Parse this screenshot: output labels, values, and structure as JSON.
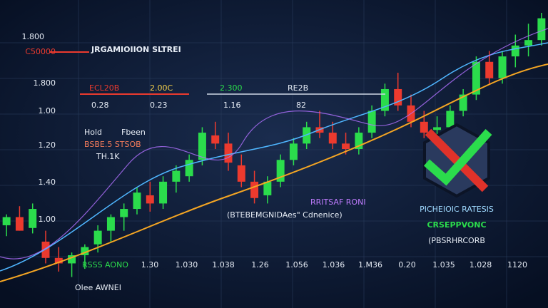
{
  "chart_data": {
    "type": "candlestick",
    "title": "JRGAMIOIION SLTREI",
    "ylim": [
      0,
      100
    ],
    "up_color": "#2bdc4c",
    "down_color": "#ec3a2e",
    "candles": [
      {
        "open": 22,
        "high": 26,
        "low": 18,
        "close": 25
      },
      {
        "open": 25,
        "high": 29,
        "low": 20,
        "close": 20
      },
      {
        "open": 21,
        "high": 30,
        "low": 19,
        "close": 28
      },
      {
        "open": 16,
        "high": 20,
        "low": 8,
        "close": 10
      },
      {
        "open": 10,
        "high": 14,
        "low": 5,
        "close": 8
      },
      {
        "open": 8,
        "high": 12,
        "low": 3,
        "close": 11
      },
      {
        "open": 11,
        "high": 15,
        "low": 6,
        "close": 14
      },
      {
        "open": 15,
        "high": 22,
        "low": 12,
        "close": 20
      },
      {
        "open": 20,
        "high": 26,
        "low": 16,
        "close": 25
      },
      {
        "open": 25,
        "high": 30,
        "low": 20,
        "close": 28
      },
      {
        "open": 28,
        "high": 36,
        "low": 26,
        "close": 34
      },
      {
        "open": 33,
        "high": 38,
        "low": 27,
        "close": 30
      },
      {
        "open": 30,
        "high": 40,
        "low": 28,
        "close": 38
      },
      {
        "open": 38,
        "high": 44,
        "low": 34,
        "close": 42
      },
      {
        "open": 40,
        "high": 48,
        "low": 38,
        "close": 46
      },
      {
        "open": 46,
        "high": 58,
        "low": 44,
        "close": 56
      },
      {
        "open": 55,
        "high": 60,
        "low": 50,
        "close": 52
      },
      {
        "open": 52,
        "high": 56,
        "low": 42,
        "close": 45
      },
      {
        "open": 44,
        "high": 48,
        "low": 36,
        "close": 38
      },
      {
        "open": 38,
        "high": 42,
        "low": 30,
        "close": 32
      },
      {
        "open": 33,
        "high": 40,
        "low": 30,
        "close": 38
      },
      {
        "open": 38,
        "high": 48,
        "low": 36,
        "close": 46
      },
      {
        "open": 46,
        "high": 54,
        "low": 44,
        "close": 52
      },
      {
        "open": 52,
        "high": 60,
        "low": 50,
        "close": 58
      },
      {
        "open": 58,
        "high": 64,
        "low": 54,
        "close": 56
      },
      {
        "open": 56,
        "high": 60,
        "low": 50,
        "close": 52
      },
      {
        "open": 52,
        "high": 56,
        "low": 48,
        "close": 50
      },
      {
        "open": 50,
        "high": 58,
        "low": 48,
        "close": 56
      },
      {
        "open": 56,
        "high": 66,
        "low": 54,
        "close": 64
      },
      {
        "open": 64,
        "high": 74,
        "low": 62,
        "close": 72
      },
      {
        "open": 72,
        "high": 78,
        "low": 64,
        "close": 66
      },
      {
        "open": 66,
        "high": 70,
        "low": 58,
        "close": 60
      },
      {
        "open": 60,
        "high": 64,
        "low": 54,
        "close": 56
      },
      {
        "open": 57,
        "high": 62,
        "low": 53,
        "close": 58
      },
      {
        "open": 58,
        "high": 66,
        "low": 56,
        "close": 64
      },
      {
        "open": 64,
        "high": 72,
        "low": 62,
        "close": 70
      },
      {
        "open": 70,
        "high": 84,
        "low": 68,
        "close": 82
      },
      {
        "open": 82,
        "high": 86,
        "low": 74,
        "close": 76
      },
      {
        "open": 76,
        "high": 86,
        "low": 74,
        "close": 84
      },
      {
        "open": 84,
        "high": 92,
        "low": 80,
        "close": 88
      },
      {
        "open": 88,
        "high": 96,
        "low": 84,
        "close": 90
      },
      {
        "open": 90,
        "high": 100,
        "low": 88,
        "close": 98
      }
    ],
    "y_labels": [
      "1.800",
      "C50000",
      "1.800",
      "1.00",
      "1.20",
      "1.40",
      "1.00"
    ],
    "level_labels": [
      "ECL20B",
      "2.00C",
      "2.300",
      "RE2B"
    ],
    "level_values": [
      "0.28",
      "0.23",
      "1.16",
      "82"
    ],
    "legend_texts": [
      "Hold",
      "Fbeen",
      "BSBE.5 STSOB",
      "TH.1K"
    ],
    "mid_texts": [
      "RRITSAF RONI",
      "(BTEBEMGNIDAes\" Cdnenice)"
    ],
    "side_texts": [
      "PICHEIOIC RATESIS",
      "CRSEPPVONC",
      "(PBSRHRCORB"
    ],
    "x_labels": [
      "RSSS AONO",
      "1.30",
      "1.030",
      "1.038",
      "1.26",
      "1.056",
      "1.036",
      "1.M36",
      "0.20",
      "1.035",
      "1.028",
      "1120"
    ],
    "footer": "Olee AWNEI"
  }
}
